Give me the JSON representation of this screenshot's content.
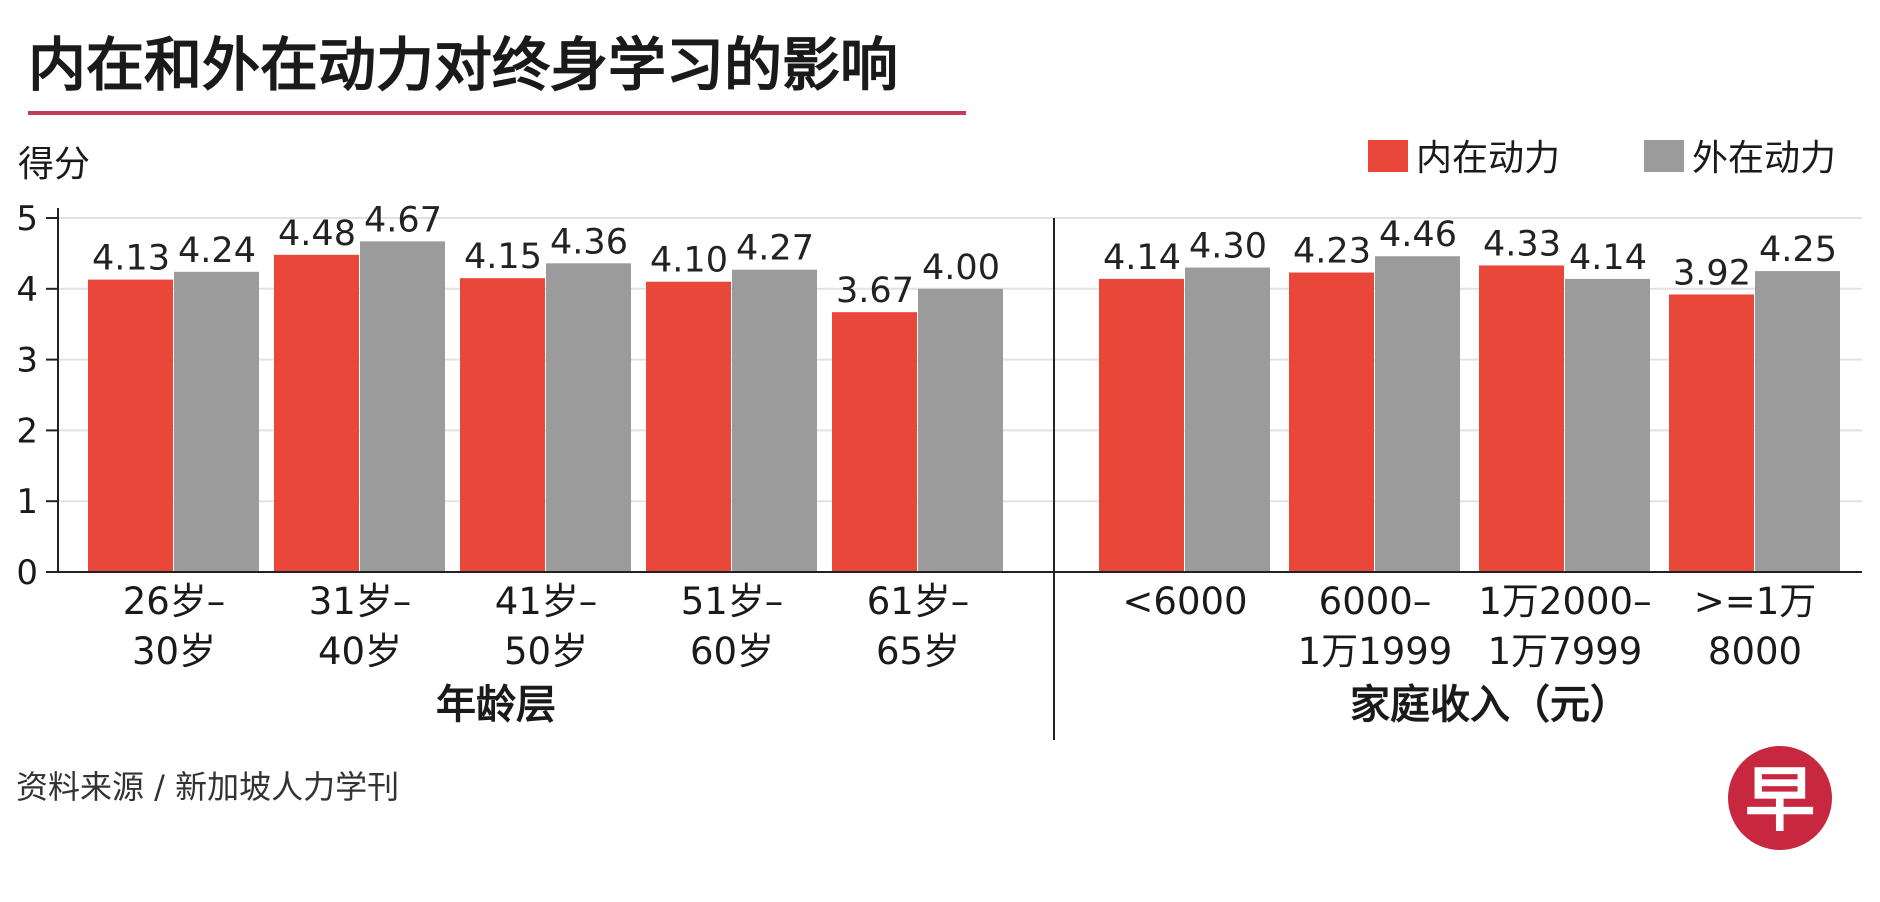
{
  "colors": {
    "inner": "#e8473a",
    "outer": "#9b9b9b",
    "title_underline": "#c83a55",
    "logo_bg": "#c8283f",
    "grid": "#e2e2e2",
    "axis": "#222222"
  },
  "header": {
    "title": "内在和外在动力对终身学习的影响"
  },
  "footer": {
    "source": "资料来源 / 新加坡人力学刊",
    "logo_icon": "zaobao-logo-icon",
    "logo_char": "早"
  },
  "chart_data": {
    "type": "bar",
    "ylabel": "得分",
    "ylim": [
      0,
      5
    ],
    "yticks": [
      0,
      1,
      2,
      3,
      4,
      5
    ],
    "grid": true,
    "legend_position": "top-right",
    "legend": [
      "内在动力",
      "外在动力"
    ],
    "series_names": [
      "内在动力",
      "外在动力"
    ],
    "panels": [
      {
        "xlabel": "年龄层",
        "categories": [
          [
            "26岁–",
            "30岁"
          ],
          [
            "31岁–",
            "40岁"
          ],
          [
            "41岁–",
            "50岁"
          ],
          [
            "51岁–",
            "60岁"
          ],
          [
            "61岁–",
            "65岁"
          ]
        ],
        "series": [
          {
            "name": "内在动力",
            "values": [
              4.13,
              4.48,
              4.15,
              4.1,
              3.67
            ],
            "labels": [
              "4.13",
              "4.48",
              "4.15",
              "4.10",
              "3.67"
            ]
          },
          {
            "name": "外在动力",
            "values": [
              4.24,
              4.67,
              4.36,
              4.27,
              4.0
            ],
            "labels": [
              "4.24",
              "4.67",
              "4.36",
              "4.27",
              "4.00"
            ]
          }
        ]
      },
      {
        "xlabel": "家庭收入（元）",
        "categories": [
          [
            "<6000"
          ],
          [
            "6000–",
            "1万1999"
          ],
          [
            "1万2000–",
            "1万7999"
          ],
          [
            ">=1万",
            "8000"
          ]
        ],
        "series": [
          {
            "name": "内在动力",
            "values": [
              4.14,
              4.23,
              4.33,
              3.92
            ],
            "labels": [
              "4.14",
              "4.23",
              "4.33",
              "3.92"
            ]
          },
          {
            "name": "外在动力",
            "values": [
              4.3,
              4.46,
              4.14,
              4.25
            ],
            "labels": [
              "4.30",
              "4.46",
              "4.14",
              "4.25"
            ]
          }
        ]
      }
    ]
  }
}
